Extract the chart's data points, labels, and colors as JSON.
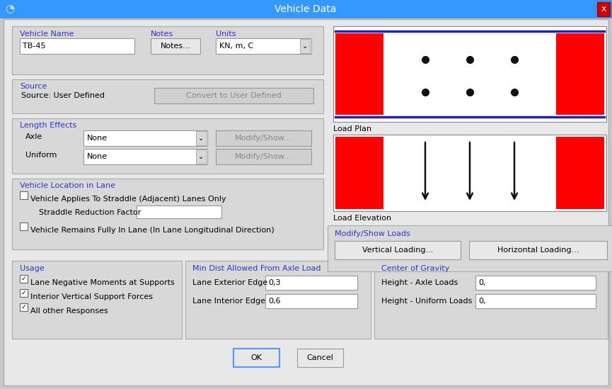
{
  "title": "Vehicle Data",
  "outer_bg": "#c8c8c8",
  "dialog_bg": "#e8e8e8",
  "title_bar_color": "#3399ff",
  "close_btn_color": "#cc0000",
  "blue_label_color": "#3333cc",
  "section_bg": "#d8d8d8",
  "section_labels": {
    "vehicle_name": "Vehicle Name",
    "notes": "Notes",
    "units": "Units",
    "source": "Source",
    "source_value": "Source: User Defined",
    "length_effects": "Length Effects",
    "axle": "Axle",
    "uniform": "Uniform",
    "vehicle_location": "Vehicle Location in Lane",
    "straddle_check": "Vehicle Applies To Straddle (Adjacent) Lanes Only",
    "straddle_factor": "Straddle Reduction Factor",
    "inlane_check": "Vehicle Remains Fully In Lane (In Lane Longitudinal Direction)",
    "usage": "Usage",
    "usage_check1": "Lane Negative Moments at Supports",
    "usage_check2": "Interior Vertical Support Forces",
    "usage_check3": "All other Responses",
    "min_dist": "Min Dist Allowed From Axle Load",
    "lane_exterior": "Lane Exterior Edge",
    "lane_interior": "Lane Interior Edge",
    "lane_exterior_val": "0,3",
    "lane_interior_val": "0,6",
    "center_gravity": "Center of Gravity",
    "height_axle": "Height - Axle Loads",
    "height_uniform": "Height - Uniform Loads",
    "height_axle_val": "0,",
    "height_uniform_val": "0,",
    "load_plan": "Load Plan",
    "load_elevation": "Load Elevation",
    "modify_show": "Modify/Show Loads",
    "vertical_loading": "Vertical Loading...",
    "horizontal_loading": "Horizontal Loading...",
    "notes_btn": "Notes...",
    "units_val": "KN, m, C",
    "convert_btn": "Convert to User Defined",
    "none1": "None",
    "none2": "None",
    "modify1": "Modify/Show...",
    "modify2": "Modify/Show...",
    "ok": "OK",
    "cancel": "Cancel",
    "tb45": "TB-45"
  },
  "red_color": "#ff0000",
  "blue_line_color": "#2222bb",
  "dot_color": "#111111",
  "arrow_color": "#111111"
}
